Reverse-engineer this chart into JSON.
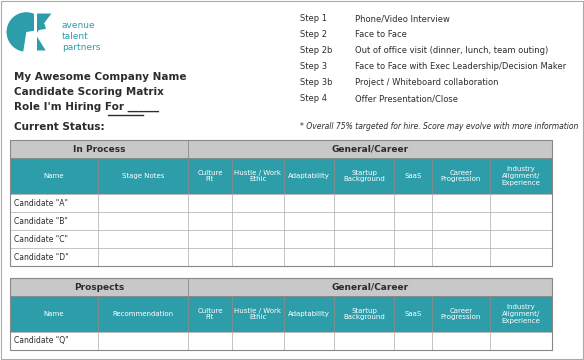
{
  "title_left": [
    "My Awesome Company Name",
    "Candidate Scoring Matrix",
    "Role I'm Hiring For ______"
  ],
  "current_status_label": "Current Status:",
  "steps": [
    [
      "Step 1",
      "Phone/Video Interview"
    ],
    [
      "Step 2",
      "Face to Face"
    ],
    [
      "Step 2b",
      "Out of office visit (dinner, lunch, team outing)"
    ],
    [
      "Step 3",
      "Face to Face with Exec Leadership/Decision Maker"
    ],
    [
      "Step 3b",
      "Project / Whiteboard collaboration"
    ],
    [
      "Step 4",
      "Offer Presentation/Close"
    ]
  ],
  "footnote": "* Overall 75% targeted for hire. Score may evolve with more information",
  "teal": "#2E9DAA",
  "light_gray": "#C8C8C8",
  "white": "#FFFFFF",
  "dark": "#2C2C2C",
  "table1_section_label": "In Process",
  "table1_general_label": "General/Career",
  "table1_cols": [
    "Name",
    "Stage Notes",
    "Culture\nFit",
    "Hustle / Work\nEthic",
    "Adaptability",
    "Startup\nBackground",
    "SaaS",
    "Career\nProgression",
    "Industry\nAlignment/\nExperience"
  ],
  "table1_rows": [
    "Candidate \"A\"",
    "Candidate \"B\"",
    "Candidate \"C\"",
    "Candidate \"D\""
  ],
  "table2_section_label": "Prospects",
  "table2_general_label": "General/Career",
  "table2_cols": [
    "Name",
    "Recommendation",
    "Culture\nFit",
    "Hustle / Work\nEthic",
    "Adaptability",
    "Startup\nBackground",
    "SaaS",
    "Career\nProgression",
    "Industry\nAlignment/\nExperience"
  ],
  "table2_rows": [
    "Candidate \"Q\""
  ]
}
